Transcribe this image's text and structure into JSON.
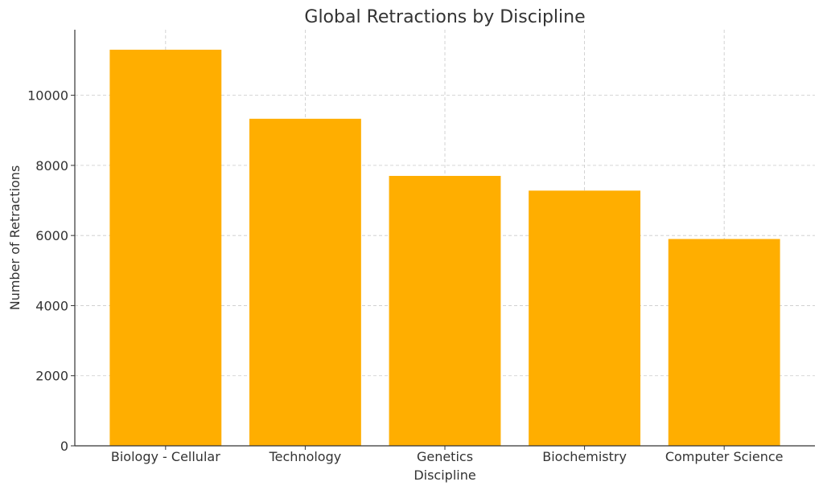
{
  "chart_data": {
    "type": "bar",
    "title": "Global Retractions by Discipline",
    "xlabel": "Discipline",
    "ylabel": "Number of Retractions",
    "categories": [
      "Biology - Cellular",
      "Technology",
      "Genetics",
      "Biochemistry",
      "Computer Science"
    ],
    "values": [
      11300,
      9330,
      7700,
      7280,
      5900
    ],
    "ylim": [
      0,
      11870
    ],
    "yticks": [
      0,
      2000,
      4000,
      6000,
      8000,
      10000
    ],
    "ytick_labels": [
      "0",
      "2000",
      "4000",
      "6000",
      "8000",
      "10000"
    ],
    "bar_color": "#FFAE00",
    "grid": true
  }
}
